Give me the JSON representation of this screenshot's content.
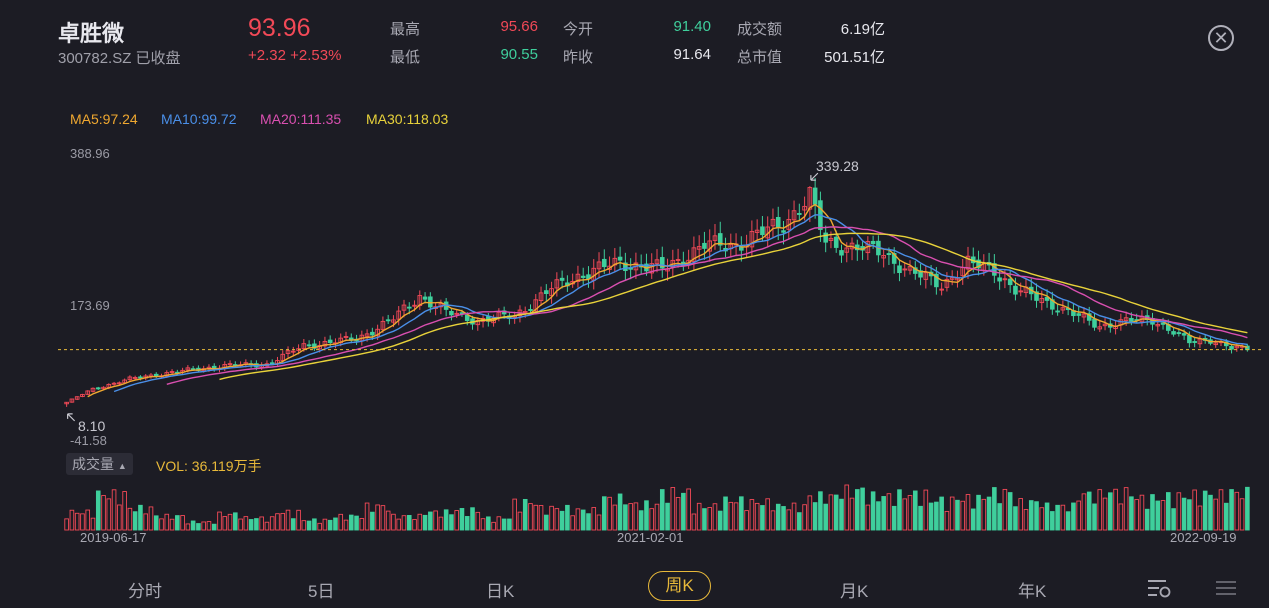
{
  "header": {
    "name": "卓胜微",
    "code_status": "300782.SZ 已收盘",
    "price": "93.96",
    "change": "+2.32 +2.53%",
    "high_label": "最高",
    "high": "95.66",
    "low_label": "最低",
    "low": "90.55",
    "open_label": "今开",
    "open": "91.40",
    "prev_label": "昨收",
    "prev": "91.64",
    "turnover_label": "成交额",
    "turnover": "6.19亿",
    "mktcap_label": "总市值",
    "mktcap": "501.51亿"
  },
  "ma_legend": {
    "ma5": "MA5:97.24",
    "ma10": "MA10:99.72",
    "ma20": "MA20:111.35",
    "ma30": "MA30:118.03"
  },
  "colors": {
    "up": "#f24957",
    "down": "#3fcf9c",
    "ma5": "#f0a830",
    "ma10": "#4a8fe8",
    "ma20": "#d94fb0",
    "ma30": "#e8d23a",
    "accent": "#e8b93a"
  },
  "axis": {
    "y_top": "388.96",
    "y_mid": "173.69",
    "y_bottom": "-41.58",
    "max_marker": "339.28",
    "min_marker": "8.10"
  },
  "volume": {
    "tag": "成交量",
    "value": "VOL: 36.119万手"
  },
  "dates": {
    "start": "2019-06-17",
    "middle": "2021-02-01",
    "end": "2022-09-19"
  },
  "tabs": [
    "分时",
    "5日",
    "日K",
    "周K",
    "月K",
    "年K"
  ],
  "active_tab": "周K",
  "chart_data": {
    "type": "candlestick",
    "period": "weekly",
    "y_range": [
      -41.58,
      388.96
    ],
    "y_ticks": [
      388.96,
      173.69,
      -41.58
    ],
    "max_high": 339.28,
    "min_low": 8.1,
    "last_close": 93.96,
    "date_labels": [
      "2019-06-17",
      "2021-02-01",
      "2022-09-19"
    ],
    "anchor_closes": [
      [
        0,
        15
      ],
      [
        5,
        35
      ],
      [
        12,
        50
      ],
      [
        20,
        60
      ],
      [
        30,
        70
      ],
      [
        38,
        72
      ],
      [
        45,
        100
      ],
      [
        55,
        110
      ],
      [
        62,
        140
      ],
      [
        67,
        175
      ],
      [
        72,
        150
      ],
      [
        78,
        138
      ],
      [
        85,
        145
      ],
      [
        92,
        185
      ],
      [
        97,
        205
      ],
      [
        105,
        225
      ],
      [
        113,
        215
      ],
      [
        121,
        250
      ],
      [
        127,
        252
      ],
      [
        131,
        265
      ],
      [
        136,
        285
      ],
      [
        141,
        322
      ],
      [
        144,
        255
      ],
      [
        149,
        248
      ],
      [
        155,
        240
      ],
      [
        160,
        210
      ],
      [
        166,
        192
      ],
      [
        171,
        222
      ],
      [
        176,
        215
      ],
      [
        180,
        182
      ],
      [
        185,
        170
      ],
      [
        190,
        150
      ],
      [
        196,
        130
      ],
      [
        202,
        137
      ],
      [
        206,
        140
      ],
      [
        210,
        120
      ],
      [
        213,
        105
      ],
      [
        217,
        110
      ],
      [
        221,
        96
      ],
      [
        224,
        94
      ]
    ],
    "volume_pattern": [
      0.45,
      0.9,
      0.55,
      0.35,
      0.2,
      0.4,
      0.3,
      0.45,
      0.25,
      0.35,
      0.6,
      0.35,
      0.45,
      0.5,
      0.3,
      0.7,
      0.55,
      0.5,
      0.8,
      0.65,
      0.95,
      0.6,
      0.75,
      0.7,
      0.6,
      0.85,
      1.0,
      0.85,
      0.9,
      0.75,
      0.8,
      0.95,
      0.7,
      0.6,
      0.9,
      0.95,
      0.8,
      0.85,
      0.9,
      0.95
    ]
  }
}
